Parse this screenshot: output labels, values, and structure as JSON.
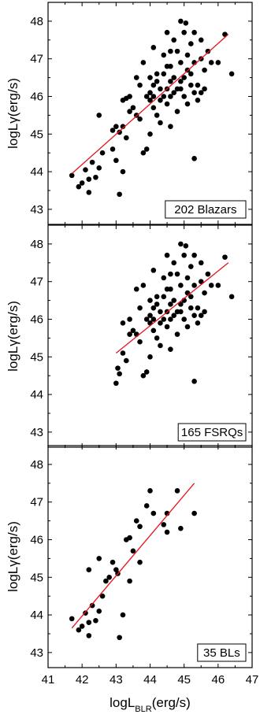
{
  "chart_data": [
    {
      "type": "scatter",
      "legend_label": "202 Blazars",
      "ylabel": "logLγ(erg/s)",
      "xlim": [
        41,
        47
      ],
      "ylim": [
        42.6,
        48.5
      ],
      "yticks": [
        "43",
        "44",
        "45",
        "46",
        "47",
        "48"
      ],
      "legend_position": "bottom-right",
      "colors": {
        "points": "#000000",
        "fit_line": "#e8141c"
      },
      "fit_line": [
        [
          41.7,
          43.95
        ],
        [
          46.3,
          47.65
        ]
      ],
      "points": [
        [
          41.7,
          43.9
        ],
        [
          41.9,
          43.6
        ],
        [
          42.0,
          43.7
        ],
        [
          42.1,
          44.05
        ],
        [
          42.2,
          43.45
        ],
        [
          42.2,
          43.8
        ],
        [
          42.3,
          44.25
        ],
        [
          42.4,
          43.85
        ],
        [
          42.5,
          44.1
        ],
        [
          42.6,
          44.5
        ],
        [
          42.5,
          45.5
        ],
        [
          42.9,
          44.6
        ],
        [
          43.0,
          44.3
        ],
        [
          43.0,
          45.2
        ],
        [
          43.1,
          43.4
        ],
        [
          43.2,
          44.0
        ],
        [
          42.9,
          45.1
        ],
        [
          43.1,
          45.05
        ],
        [
          43.2,
          45.2
        ],
        [
          43.3,
          44.9
        ],
        [
          43.2,
          45.9
        ],
        [
          43.3,
          45.95
        ],
        [
          43.4,
          46.0
        ],
        [
          43.5,
          45.7
        ],
        [
          43.6,
          45.5
        ],
        [
          43.6,
          46.5
        ],
        [
          43.7,
          45.4
        ],
        [
          43.7,
          46.3
        ],
        [
          43.8,
          44.5
        ],
        [
          43.9,
          44.6
        ],
        [
          44.0,
          45.0
        ],
        [
          44.0,
          45.9
        ],
        [
          44.1,
          46.3
        ],
        [
          44.1,
          47.3
        ],
        [
          43.8,
          46.9
        ],
        [
          44.2,
          46.4
        ],
        [
          44.3,
          45.3
        ],
        [
          44.4,
          46.6
        ],
        [
          44.4,
          47.1
        ],
        [
          44.5,
          45.8
        ],
        [
          44.5,
          46.2
        ],
        [
          44.6,
          46.8
        ],
        [
          44.6,
          46.0
        ],
        [
          44.7,
          46.5
        ],
        [
          44.7,
          47.5
        ],
        [
          44.8,
          46.2
        ],
        [
          44.8,
          47.2
        ],
        [
          44.9,
          46.4
        ],
        [
          45.0,
          47.7
        ],
        [
          45.0,
          46.0
        ],
        [
          45.1,
          47.1
        ],
        [
          45.1,
          45.8
        ],
        [
          45.2,
          46.6
        ],
        [
          45.2,
          47.4
        ],
        [
          45.3,
          44.35
        ],
        [
          45.3,
          46.9
        ],
        [
          45.4,
          46.3
        ],
        [
          45.5,
          47.0
        ],
        [
          45.6,
          46.7
        ],
        [
          45.7,
          47.2
        ],
        [
          46.0,
          46.9
        ],
        [
          46.2,
          47.65
        ],
        [
          46.4,
          46.6
        ],
        [
          44.9,
          48.0
        ],
        [
          45.05,
          47.95
        ],
        [
          45.3,
          47.7
        ],
        [
          44.5,
          47.7
        ],
        [
          44.2,
          46.6
        ],
        [
          44.0,
          46.1
        ],
        [
          43.9,
          46.0
        ],
        [
          44.1,
          46.0
        ],
        [
          44.3,
          46.2
        ],
        [
          44.6,
          46.4
        ],
        [
          44.7,
          46.1
        ],
        [
          44.9,
          46.2
        ],
        [
          45.0,
          46.5
        ],
        [
          45.2,
          46.3
        ],
        [
          45.4,
          45.9
        ],
        [
          45.5,
          46.1
        ],
        [
          44.4,
          46.0
        ],
        [
          44.8,
          45.6
        ],
        [
          45.6,
          46.2
        ],
        [
          45.8,
          46.9
        ],
        [
          43.4,
          45.6
        ],
        [
          44.2,
          45.5
        ],
        [
          44.5,
          46.8
        ],
        [
          44.6,
          45.2
        ],
        [
          45.1,
          46.7
        ],
        [
          45.3,
          46.1
        ],
        [
          44.3,
          45.9
        ],
        [
          44.0,
          46.5
        ],
        [
          44.9,
          46.9
        ],
        [
          45.5,
          47.5
        ],
        [
          44.6,
          47.2
        ],
        [
          44.1,
          45.7
        ]
      ]
    },
    {
      "type": "scatter",
      "legend_label": "165 FSRQs",
      "ylabel": "logLγ(erg/s)",
      "xlim": [
        41,
        47
      ],
      "ylim": [
        42.6,
        48.5
      ],
      "yticks": [
        "43",
        "44",
        "45",
        "46",
        "47",
        "48"
      ],
      "legend_position": "bottom-right",
      "colors": {
        "points": "#000000",
        "fit_line": "#e8141c"
      },
      "fit_line": [
        [
          43.0,
          45.1
        ],
        [
          46.3,
          47.5
        ]
      ],
      "points": [
        [
          43.0,
          44.3
        ],
        [
          43.05,
          44.7
        ],
        [
          43.1,
          44.55
        ],
        [
          43.2,
          45.1
        ],
        [
          43.3,
          44.9
        ],
        [
          43.2,
          45.9
        ],
        [
          43.4,
          46.0
        ],
        [
          43.5,
          45.7
        ],
        [
          43.6,
          45.6
        ],
        [
          43.6,
          46.8
        ],
        [
          43.7,
          45.4
        ],
        [
          43.7,
          46.3
        ],
        [
          43.8,
          44.5
        ],
        [
          43.9,
          44.6
        ],
        [
          44.0,
          45.0
        ],
        [
          44.0,
          45.9
        ],
        [
          44.1,
          46.3
        ],
        [
          44.1,
          47.3
        ],
        [
          43.8,
          46.9
        ],
        [
          44.2,
          46.4
        ],
        [
          44.3,
          45.3
        ],
        [
          44.4,
          46.6
        ],
        [
          44.4,
          47.1
        ],
        [
          44.5,
          45.8
        ],
        [
          44.5,
          46.2
        ],
        [
          44.6,
          46.8
        ],
        [
          44.6,
          46.0
        ],
        [
          44.7,
          46.5
        ],
        [
          44.7,
          47.5
        ],
        [
          44.8,
          46.2
        ],
        [
          44.8,
          47.2
        ],
        [
          44.9,
          46.4
        ],
        [
          45.0,
          47.7
        ],
        [
          45.0,
          46.0
        ],
        [
          45.1,
          47.1
        ],
        [
          45.1,
          45.8
        ],
        [
          45.2,
          46.6
        ],
        [
          45.2,
          47.4
        ],
        [
          45.3,
          44.35
        ],
        [
          45.3,
          46.9
        ],
        [
          45.4,
          46.3
        ],
        [
          45.5,
          47.0
        ],
        [
          45.6,
          46.7
        ],
        [
          45.7,
          47.2
        ],
        [
          46.0,
          46.9
        ],
        [
          46.2,
          47.65
        ],
        [
          46.4,
          46.6
        ],
        [
          44.9,
          48.0
        ],
        [
          45.05,
          47.95
        ],
        [
          45.3,
          47.7
        ],
        [
          44.5,
          47.7
        ],
        [
          44.2,
          46.6
        ],
        [
          44.0,
          46.1
        ],
        [
          43.9,
          46.0
        ],
        [
          44.1,
          46.0
        ],
        [
          44.3,
          46.2
        ],
        [
          44.6,
          46.4
        ],
        [
          44.7,
          46.1
        ],
        [
          44.9,
          46.2
        ],
        [
          45.0,
          46.5
        ],
        [
          45.2,
          46.3
        ],
        [
          45.4,
          45.9
        ],
        [
          45.5,
          46.1
        ],
        [
          44.4,
          46.0
        ],
        [
          44.8,
          45.6
        ],
        [
          45.6,
          46.2
        ],
        [
          45.8,
          46.9
        ],
        [
          43.4,
          45.6
        ],
        [
          44.2,
          45.5
        ],
        [
          44.5,
          46.8
        ],
        [
          44.6,
          45.2
        ],
        [
          45.1,
          46.7
        ],
        [
          45.3,
          46.1
        ],
        [
          44.3,
          45.9
        ],
        [
          44.0,
          46.5
        ],
        [
          44.9,
          46.9
        ],
        [
          45.5,
          47.5
        ],
        [
          44.6,
          47.2
        ],
        [
          44.1,
          45.7
        ]
      ]
    },
    {
      "type": "scatter",
      "legend_label": "35 BLs",
      "ylabel": "logLγ(erg/s)",
      "xlabel": "logL",
      "xlabel_sub": "BLR",
      "xlabel_suffix": "(erg/s)",
      "xlim": [
        41,
        47
      ],
      "ylim": [
        42.6,
        48.5
      ],
      "yticks": [
        "43",
        "44",
        "45",
        "46",
        "47",
        "48"
      ],
      "xticks": [
        "41",
        "42",
        "43",
        "44",
        "45",
        "46",
        "47"
      ],
      "legend_position": "bottom-right",
      "colors": {
        "points": "#000000",
        "fit_line": "#e8141c"
      },
      "fit_line": [
        [
          41.7,
          43.65
        ],
        [
          45.3,
          47.5
        ]
      ],
      "points": [
        [
          41.7,
          43.9
        ],
        [
          41.9,
          43.6
        ],
        [
          42.0,
          43.7
        ],
        [
          42.1,
          44.05
        ],
        [
          42.2,
          43.45
        ],
        [
          42.2,
          43.8
        ],
        [
          42.3,
          44.25
        ],
        [
          42.4,
          43.85
        ],
        [
          42.5,
          44.1
        ],
        [
          42.6,
          44.5
        ],
        [
          42.5,
          45.5
        ],
        [
          42.2,
          45.2
        ],
        [
          42.8,
          45.0
        ],
        [
          43.0,
          45.2
        ],
        [
          43.05,
          45.1
        ],
        [
          43.1,
          43.4
        ],
        [
          43.2,
          44.0
        ],
        [
          42.9,
          45.4
        ],
        [
          43.3,
          46.0
        ],
        [
          43.4,
          46.05
        ],
        [
          43.4,
          44.9
        ],
        [
          43.5,
          45.7
        ],
        [
          43.6,
          46.5
        ],
        [
          43.7,
          46.35
        ],
        [
          43.7,
          45.4
        ],
        [
          43.9,
          46.9
        ],
        [
          44.0,
          47.3
        ],
        [
          44.4,
          46.4
        ],
        [
          44.5,
          46.2
        ],
        [
          44.5,
          46.7
        ],
        [
          44.8,
          47.3
        ],
        [
          44.9,
          46.3
        ],
        [
          45.3,
          46.7
        ],
        [
          44.1,
          46.7
        ],
        [
          42.7,
          44.9
        ]
      ]
    }
  ]
}
